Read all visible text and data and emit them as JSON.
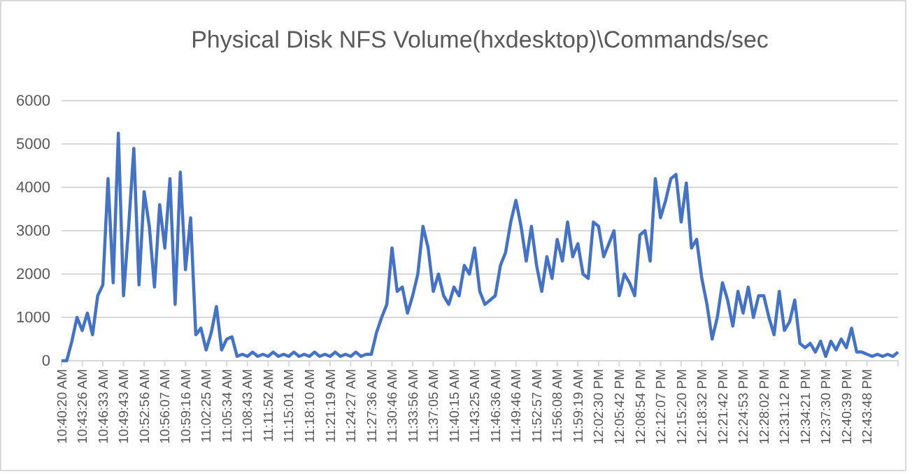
{
  "chart_data": {
    "type": "line",
    "title": "Physical Disk NFS Volume(hxdesktop)\\Commands/sec",
    "categories": [
      "10:40:20 AM",
      null,
      null,
      null,
      "10:43:26 AM",
      null,
      null,
      null,
      "10:46:33 AM",
      null,
      null,
      null,
      "10:49:43 AM",
      null,
      null,
      null,
      "10:52:56 AM",
      null,
      null,
      null,
      "10:56:07 AM",
      null,
      null,
      null,
      "10:59:16 AM",
      null,
      null,
      null,
      "11:02:25 AM",
      null,
      null,
      null,
      "11:05:34 AM",
      null,
      null,
      null,
      "11:08:43 AM",
      null,
      null,
      null,
      "11:11:52 AM",
      null,
      null,
      null,
      "11:15:01 AM",
      null,
      null,
      null,
      "11:18:10 AM",
      null,
      null,
      null,
      "11:21:19 AM",
      null,
      null,
      null,
      "11:24:27 AM",
      null,
      null,
      null,
      "11:27:36 AM",
      null,
      null,
      null,
      "11:30:46 AM",
      null,
      null,
      null,
      "11:33:56 AM",
      null,
      null,
      null,
      "11:37:05 AM",
      null,
      null,
      null,
      "11:40:15 AM",
      null,
      null,
      null,
      "11:43:25 AM",
      null,
      null,
      null,
      "11:46:36 AM",
      null,
      null,
      null,
      "11:49:46 AM",
      null,
      null,
      null,
      "11:52:57 AM",
      null,
      null,
      null,
      "11:56:08 AM",
      null,
      null,
      null,
      "11:59:19 AM",
      null,
      null,
      null,
      "12:02:30 PM",
      null,
      null,
      null,
      "12:05:42 PM",
      null,
      null,
      null,
      "12:08:54 PM",
      null,
      null,
      null,
      "12:12:07 PM",
      null,
      null,
      null,
      "12:15:20 PM",
      null,
      null,
      null,
      "12:18:32 PM",
      null,
      null,
      null,
      "12:21:42 PM",
      null,
      null,
      null,
      "12:24:53 PM",
      null,
      null,
      null,
      "12:28:02 PM",
      null,
      null,
      null,
      "12:31:12 PM",
      null,
      null,
      null,
      "12:34:21 PM",
      null,
      null,
      null,
      "12:37:30 PM",
      null,
      null,
      null,
      "12:40:39 PM",
      null,
      null,
      null,
      "12:43:48 PM",
      null,
      null,
      null,
      null,
      null,
      null
    ],
    "series": [
      {
        "color": "#4472c4",
        "values": [
          0,
          0,
          450,
          1000,
          700,
          1100,
          600,
          1500,
          1750,
          4200,
          1800,
          5250,
          1500,
          3100,
          4900,
          1750,
          3900,
          3100,
          1700,
          3600,
          2600,
          4200,
          1300,
          4350,
          2100,
          3300,
          600,
          750,
          250,
          650,
          1250,
          250,
          500,
          550,
          100,
          150,
          100,
          200,
          100,
          150,
          100,
          200,
          100,
          150,
          100,
          200,
          100,
          150,
          100,
          200,
          100,
          150,
          100,
          200,
          100,
          150,
          100,
          200,
          100,
          150,
          150,
          650,
          1000,
          1300,
          2600,
          1600,
          1700,
          1100,
          1500,
          2000,
          3100,
          2600,
          1600,
          2000,
          1500,
          1300,
          1700,
          1500,
          2200,
          2000,
          2600,
          1600,
          1300,
          1400,
          1500,
          2200,
          2500,
          3200,
          3700,
          3100,
          2300,
          3100,
          2200,
          1600,
          2400,
          1900,
          2800,
          2300,
          3200,
          2400,
          2700,
          2000,
          1900,
          3200,
          3100,
          2400,
          2700,
          3000,
          1500,
          2000,
          1800,
          1500,
          2900,
          3000,
          2300,
          4200,
          3300,
          3700,
          4200,
          4300,
          3200,
          4100,
          2600,
          2800,
          1900,
          1300,
          500,
          1000,
          1800,
          1400,
          800,
          1600,
          1100,
          1700,
          1000,
          1500,
          1500,
          1000,
          600,
          1600,
          700,
          900,
          1400,
          400,
          300,
          400,
          200,
          450,
          100,
          450,
          250,
          500,
          300,
          750,
          200,
          200,
          150,
          100,
          150,
          100,
          150,
          100,
          200
        ]
      }
    ],
    "ylim": [
      0,
      6000
    ],
    "yticks": [
      0,
      1000,
      2000,
      3000,
      4000,
      5000,
      6000
    ],
    "grid": "y"
  }
}
